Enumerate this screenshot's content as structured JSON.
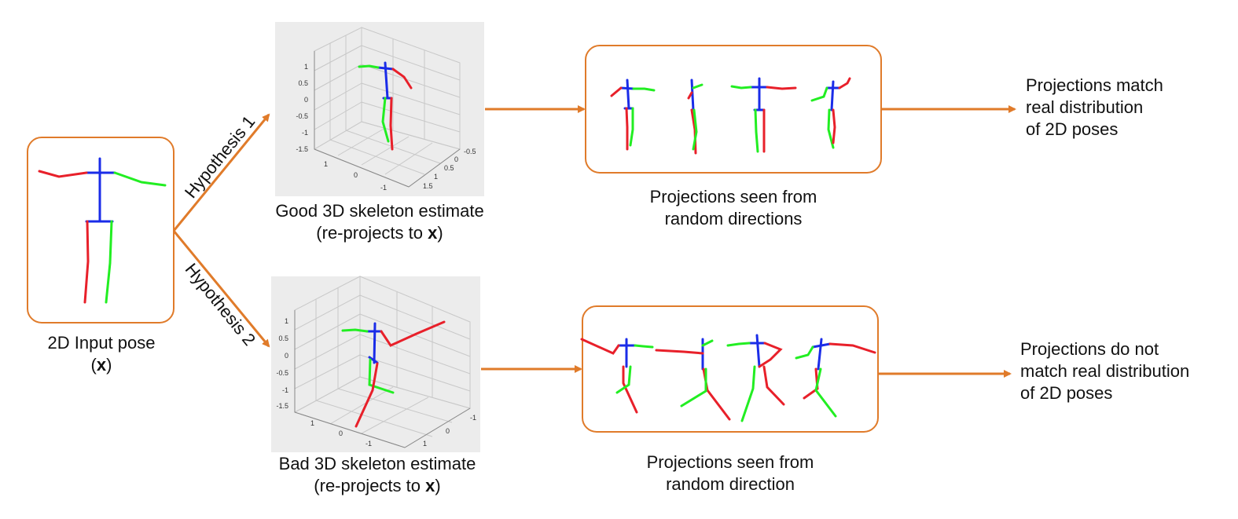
{
  "colors": {
    "box_border": "#e07b2a",
    "arrow": "#e07b2a",
    "limb_red": "#e8202a",
    "limb_green": "#22ee22",
    "torso_blue": "#1a2ce8",
    "plot_bg": "#ececec",
    "grid": "#c8c8c8"
  },
  "input_pose": {
    "label_line1": "2D Input pose",
    "label_line2_open": "(",
    "label_line2_var": "x",
    "label_line2_close": ")"
  },
  "hypotheses": {
    "h1": "Hypothesis 1",
    "h2": "Hypothesis 2"
  },
  "good_estimate": {
    "label_line1": "Good 3D skeleton estimate",
    "label_line2_pre": "(re-projects to ",
    "label_line2_var": "x",
    "label_line2_post": ")",
    "z_ticks": [
      "1",
      "0.5",
      "0",
      "-0.5",
      "-1",
      "-1.5"
    ],
    "x_ticks": [
      "1",
      "0",
      "-1"
    ],
    "y_ticks": [
      "-0.5",
      "0",
      "0.5",
      "1",
      "1.5"
    ]
  },
  "bad_estimate": {
    "label_line1": "Bad 3D skeleton estimate",
    "label_line2_pre": "(re-projects to ",
    "label_line2_var": "x",
    "label_line2_post": ")",
    "z_ticks": [
      "1",
      "0.5",
      "0",
      "-0.5",
      "-1",
      "-1.5"
    ],
    "x_ticks": [
      "1",
      "0",
      "-1"
    ],
    "y_ticks": [
      "1",
      "0",
      "-1"
    ]
  },
  "good_projections": {
    "label_line1": "Projections seen from",
    "label_line2": "random directions"
  },
  "bad_projections": {
    "label_line1": "Projections seen from",
    "label_line2": "random direction"
  },
  "good_result": {
    "line1": "Projections match",
    "line2": "real distribution",
    "line3": "of 2D poses"
  },
  "bad_result": {
    "line1": "Projections do not",
    "line2": "match real distribution",
    "line3": "of 2D poses"
  }
}
